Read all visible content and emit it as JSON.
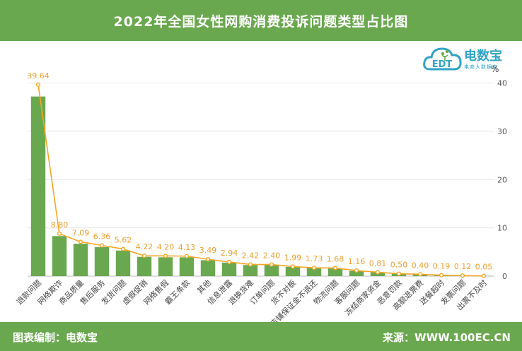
{
  "header": {
    "title": "2022年全国女性网购消费投诉问题类型占比图"
  },
  "footer": {
    "editor": "图表编制：电数宝",
    "source": "来源：WWW.100EC.CN"
  },
  "logo": {
    "brand": "电数宝",
    "slogan": "电商大数据库",
    "mark": "EDT"
  },
  "colors": {
    "bar": "#6aa84f",
    "line": "#f5a623",
    "header": "#6aa84f"
  },
  "chart_data": {
    "type": "bar",
    "unit": "%",
    "categories": [
      "退款问题",
      "网络欺诈",
      "商品质量",
      "售后服务",
      "发货问题",
      "虚假促销",
      "网络售假",
      "霸王条款",
      "其他",
      "信息泄露",
      "退换货难",
      "订单问题",
      "货不对板",
      "店铺保证金不退还",
      "物流问题",
      "客服问题",
      "冻结商家资金",
      "恶意罚款",
      "高额退票费",
      "送餐超时",
      "发票问题",
      "出票不及时"
    ],
    "bar_values": [
      37.2,
      8.3,
      6.7,
      6.0,
      5.3,
      4.0,
      3.9,
      3.9,
      3.3,
      2.8,
      2.3,
      2.3,
      1.9,
      1.7,
      1.6,
      1.1,
      0.8,
      0.5,
      0.4,
      0.2,
      0.1,
      0.05
    ],
    "line_values": [
      39.64,
      8.8,
      7.09,
      6.36,
      5.62,
      4.22,
      4.2,
      4.13,
      3.49,
      2.94,
      2.42,
      2.4,
      1.99,
      1.73,
      1.68,
      1.16,
      0.81,
      0.5,
      0.4,
      0.19,
      0.12,
      0.05
    ],
    "data_labels": [
      "39.64",
      "8.80",
      "7.09",
      "6.36",
      "5.62",
      "4.22",
      "4.20",
      "4.13",
      "3.49",
      "2.94",
      "2.42",
      "2.40",
      "1.99",
      "1.73",
      "1.68",
      "1.16",
      "0.81",
      "0.50",
      "0.40",
      "0.19",
      "0.12",
      "0.05"
    ],
    "yticks": [
      "0",
      "10",
      "20",
      "30",
      "40"
    ],
    "ylim": [
      0,
      40
    ],
    "y_axis_side": "right",
    "grid": true,
    "legend": "none"
  }
}
